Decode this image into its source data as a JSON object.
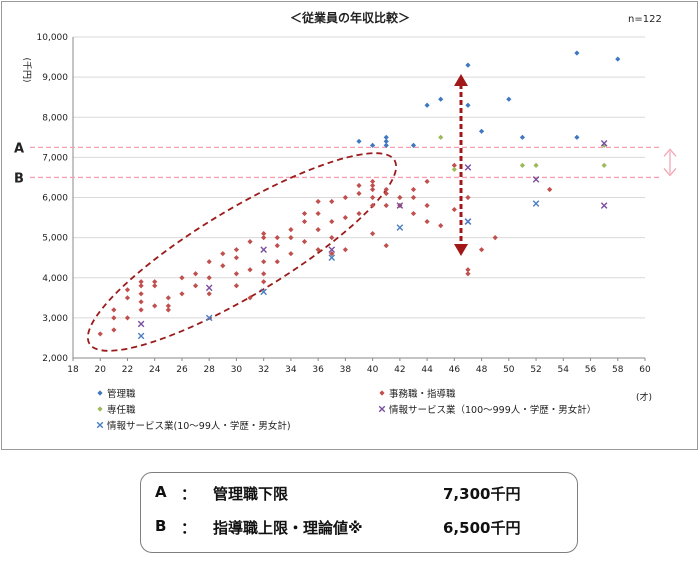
{
  "chart_data": {
    "type": "scatter",
    "title": "＜従業員の年収比較＞",
    "note": "n=122",
    "ylabel": "(千円)",
    "xlabel": "(才)",
    "xlim": [
      18,
      60
    ],
    "ylim": [
      2000,
      10000
    ],
    "x_ticks": [
      "18",
      "20",
      "22",
      "24",
      "26",
      "28",
      "30",
      "32",
      "34",
      "36",
      "38",
      "40",
      "42",
      "44",
      "46",
      "48",
      "50",
      "52",
      "54",
      "56",
      "58",
      "60"
    ],
    "y_ticks": [
      "2,000",
      "3,000",
      "4,000",
      "5,000",
      "6,000",
      "7,000",
      "8,000",
      "9,000",
      "10,000"
    ],
    "reference_lines": [
      {
        "label": "A",
        "value": 7250,
        "color": "#f4a0b0"
      },
      {
        "label": "B",
        "value": 6500,
        "color": "#f4a0b0"
      }
    ],
    "series": [
      {
        "name": "管理職",
        "marker": "diamond",
        "color": "#3f78c1",
        "points": [
          [
            39,
            7400
          ],
          [
            40,
            7300
          ],
          [
            41,
            7500
          ],
          [
            41,
            7300
          ],
          [
            41,
            7400
          ],
          [
            43,
            7300
          ],
          [
            44,
            8300
          ],
          [
            45,
            8450
          ],
          [
            47,
            9300
          ],
          [
            47,
            8300
          ],
          [
            48,
            7650
          ],
          [
            50,
            8450
          ],
          [
            51,
            7500
          ],
          [
            55,
            9600
          ],
          [
            55,
            7500
          ],
          [
            58,
            9450
          ]
        ]
      },
      {
        "name": "事務職・指導職",
        "marker": "diamond",
        "color": "#c0504d",
        "points": [
          [
            20,
            2600
          ],
          [
            21,
            2700
          ],
          [
            21,
            3000
          ],
          [
            21,
            3200
          ],
          [
            22,
            3000
          ],
          [
            22,
            3500
          ],
          [
            22,
            3700
          ],
          [
            23,
            3200
          ],
          [
            23,
            3400
          ],
          [
            23,
            3600
          ],
          [
            23,
            3800
          ],
          [
            23,
            3900
          ],
          [
            24,
            3300
          ],
          [
            24,
            3800
          ],
          [
            24,
            3900
          ],
          [
            25,
            3200
          ],
          [
            25,
            3300
          ],
          [
            25,
            3500
          ],
          [
            26,
            4000
          ],
          [
            26,
            3600
          ],
          [
            27,
            3800
          ],
          [
            27,
            4100
          ],
          [
            28,
            3600
          ],
          [
            28,
            4000
          ],
          [
            28,
            4400
          ],
          [
            29,
            4300
          ],
          [
            29,
            4600
          ],
          [
            30,
            3800
          ],
          [
            30,
            4100
          ],
          [
            30,
            4500
          ],
          [
            30,
            4700
          ],
          [
            31,
            3500
          ],
          [
            31,
            4200
          ],
          [
            31,
            4900
          ],
          [
            32,
            3900
          ],
          [
            32,
            4100
          ],
          [
            32,
            4400
          ],
          [
            32,
            5000
          ],
          [
            32,
            5100
          ],
          [
            33,
            4400
          ],
          [
            33,
            4800
          ],
          [
            33,
            5000
          ],
          [
            34,
            4600
          ],
          [
            34,
            5000
          ],
          [
            34,
            5200
          ],
          [
            35,
            5400
          ],
          [
            35,
            4900
          ],
          [
            35,
            5600
          ],
          [
            36,
            4700
          ],
          [
            36,
            5200
          ],
          [
            36,
            5600
          ],
          [
            36,
            5900
          ],
          [
            37,
            4600
          ],
          [
            37,
            5000
          ],
          [
            37,
            5400
          ],
          [
            37,
            5900
          ],
          [
            38,
            4700
          ],
          [
            38,
            5500
          ],
          [
            38,
            6000
          ],
          [
            39,
            5600
          ],
          [
            39,
            6100
          ],
          [
            39,
            6300
          ],
          [
            40,
            5100
          ],
          [
            40,
            5800
          ],
          [
            40,
            6000
          ],
          [
            40,
            6200
          ],
          [
            40,
            6300
          ],
          [
            40,
            6400
          ],
          [
            41,
            4800
          ],
          [
            41,
            5800
          ],
          [
            41,
            6100
          ],
          [
            41,
            6200
          ],
          [
            42,
            5800
          ],
          [
            42,
            6000
          ],
          [
            43,
            5600
          ],
          [
            43,
            6000
          ],
          [
            43,
            6200
          ],
          [
            44,
            5400
          ],
          [
            44,
            5800
          ],
          [
            44,
            6400
          ],
          [
            45,
            5300
          ],
          [
            46,
            5700
          ],
          [
            46,
            6800
          ],
          [
            47,
            6000
          ],
          [
            47,
            4100
          ],
          [
            47,
            4200
          ],
          [
            48,
            4700
          ],
          [
            49,
            5000
          ],
          [
            53,
            6200
          ]
        ]
      },
      {
        "name": "専任職",
        "marker": "diamond",
        "color": "#9bbb59",
        "points": [
          [
            45,
            7500
          ],
          [
            46,
            6700
          ],
          [
            51,
            6800
          ],
          [
            52,
            6800
          ],
          [
            57,
            6800
          ],
          [
            57,
            7300
          ]
        ]
      },
      {
        "name": "情報サービス業（100〜999人・学歴・男女計）",
        "marker": "x",
        "color": "#7a4f9e",
        "points": [
          [
            23,
            2850
          ],
          [
            28,
            3750
          ],
          [
            32,
            4700
          ],
          [
            37,
            4700
          ],
          [
            42,
            5800
          ],
          [
            47,
            5400
          ],
          [
            47,
            6750
          ],
          [
            52,
            6450
          ],
          [
            57,
            5800
          ],
          [
            57,
            7350
          ]
        ]
      },
      {
        "name": "情報サービス業(10〜99人・学歴・男女計)",
        "marker": "x",
        "color": "#4a7fc1",
        "points": [
          [
            23,
            2550
          ],
          [
            28,
            3000
          ],
          [
            32,
            3650
          ],
          [
            37,
            4500
          ],
          [
            42,
            5250
          ],
          [
            47,
            5400
          ],
          [
            52,
            5850
          ]
        ]
      }
    ],
    "annotations": [
      "A",
      "B"
    ]
  },
  "legend": [
    {
      "label": "A",
      "sep": "：",
      "text": "管理職下限",
      "value": "7,300千円"
    },
    {
      "label": "B",
      "sep": "：",
      "text": "指導職上限・理論値※",
      "value": "6,500千円"
    }
  ]
}
